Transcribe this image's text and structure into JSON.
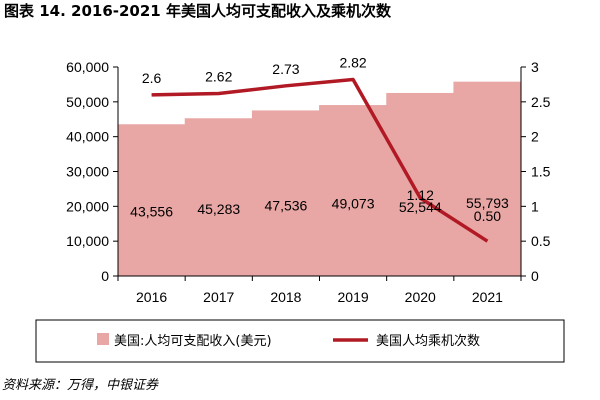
{
  "page_title": "图表 14. 2016-2021 年美国人均可支配收入及乘机次数",
  "source_note": "资料来源：万得，中银证券",
  "colors": {
    "bar": "#e8a6a4",
    "line": "#b11a24",
    "frame": "#000000"
  },
  "chart_data": {
    "type": "bar",
    "title": "图表 14. 2016-2021 年美国人均可支配收入及乘机次数",
    "categories": [
      "2016",
      "2017",
      "2018",
      "2019",
      "2020",
      "2021"
    ],
    "series": [
      {
        "name": "美国:人均可支配收入(美元)",
        "type": "bar",
        "axis": "left",
        "values": [
          43556,
          45283,
          47536,
          49073,
          52544,
          55793
        ],
        "labels": [
          "43,556",
          "45,283",
          "47,536",
          "49,073",
          "52,544",
          "55,793"
        ]
      },
      {
        "name": "美国人均乘机次数",
        "type": "line",
        "axis": "right",
        "values": [
          2.6,
          2.62,
          2.73,
          2.82,
          1.12,
          0.5
        ],
        "labels": [
          "2.6",
          "2.62",
          "2.73",
          "2.82",
          "1.12",
          "0.50"
        ]
      }
    ],
    "left_axis": {
      "ylim": [
        0,
        60000
      ],
      "ticks": [
        "0",
        "10,000",
        "20,000",
        "30,000",
        "40,000",
        "50,000",
        "60,000"
      ]
    },
    "right_axis": {
      "ylim": [
        0,
        3
      ],
      "ticks": [
        "0",
        "0.5",
        "1",
        "1.5",
        "2",
        "2.5",
        "3"
      ]
    },
    "legend_position": "bottom",
    "grid": false
  }
}
